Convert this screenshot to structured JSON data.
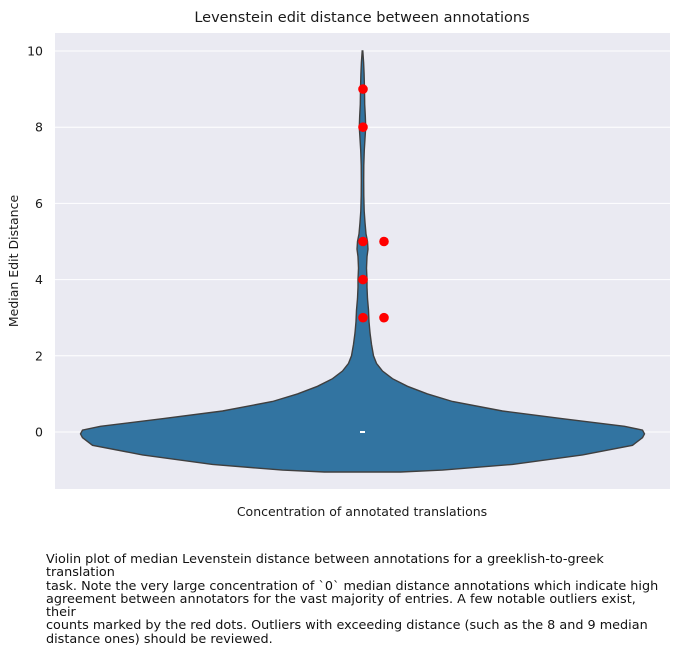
{
  "chart_data": {
    "type": "violin",
    "title": "Levenstein edit distance between annotations",
    "xlabel": "Concentration of annotated translations",
    "ylabel": "Median Edit Distance",
    "ylim": [
      -1.5,
      10.5
    ],
    "yticks": [
      "0",
      "2",
      "4",
      "6",
      "8",
      "10"
    ],
    "grid": true,
    "violin": {
      "color": "#3274a1",
      "median": 0,
      "min": 0,
      "max": 10
    },
    "outliers": [
      {
        "y": 9,
        "count": 1
      },
      {
        "y": 8,
        "count": 1
      },
      {
        "y": 5,
        "count": 2
      },
      {
        "y": 4,
        "count": 1
      },
      {
        "y": 3,
        "count": 2
      }
    ],
    "outlier_color": "#ff0000"
  },
  "caption": "Violin plot of median Levenstein distance between annotations for  a greeklish-to-greek translation\ntask. Note the very large concentration of  `0` median distance annotations which indicate high\nagreement between  annotators for the vast majority of entries. A few notable outliers exist, their\ncounts marked by the red dots. Outliers with exceeding distance  (such as the 8 and 9 median\ndistance ones) should be reviewed."
}
